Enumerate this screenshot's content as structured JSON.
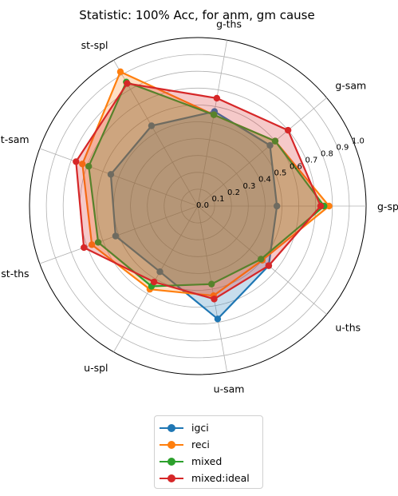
{
  "chart_data": {
    "type": "radar",
    "title": "Statistic: 100% Acc, for anm, gm cause",
    "categories": [
      "g-spl",
      "g-sam",
      "g-ths",
      "st-spl",
      "st-sam",
      "st-ths",
      "u-spl",
      "u-sam",
      "u-ths"
    ],
    "rlim": [
      0,
      1.0
    ],
    "radial_ticks": [
      "0.0",
      "0.1",
      "0.2",
      "0.3",
      "0.4",
      "0.5",
      "0.6",
      "0.7",
      "0.8",
      "0.9",
      "1.0"
    ],
    "grid": true,
    "legend_position": "bottom",
    "series": [
      {
        "name": "igci",
        "color": "#1f77b4",
        "values": [
          0.47,
          0.56,
          0.57,
          0.55,
          0.55,
          0.52,
          0.45,
          0.68,
          0.55
        ]
      },
      {
        "name": "reci",
        "color": "#ff7f0e",
        "values": [
          0.78,
          0.6,
          0.55,
          0.92,
          0.73,
          0.67,
          0.57,
          0.54,
          0.5
        ]
      },
      {
        "name": "mixed",
        "color": "#2ca02c",
        "values": [
          0.75,
          0.6,
          0.55,
          0.85,
          0.69,
          0.63,
          0.55,
          0.47,
          0.49
        ]
      },
      {
        "name": "mixed:ideal",
        "color": "#d62728",
        "values": [
          0.73,
          0.7,
          0.65,
          0.84,
          0.77,
          0.72,
          0.52,
          0.56,
          0.55
        ]
      }
    ]
  }
}
